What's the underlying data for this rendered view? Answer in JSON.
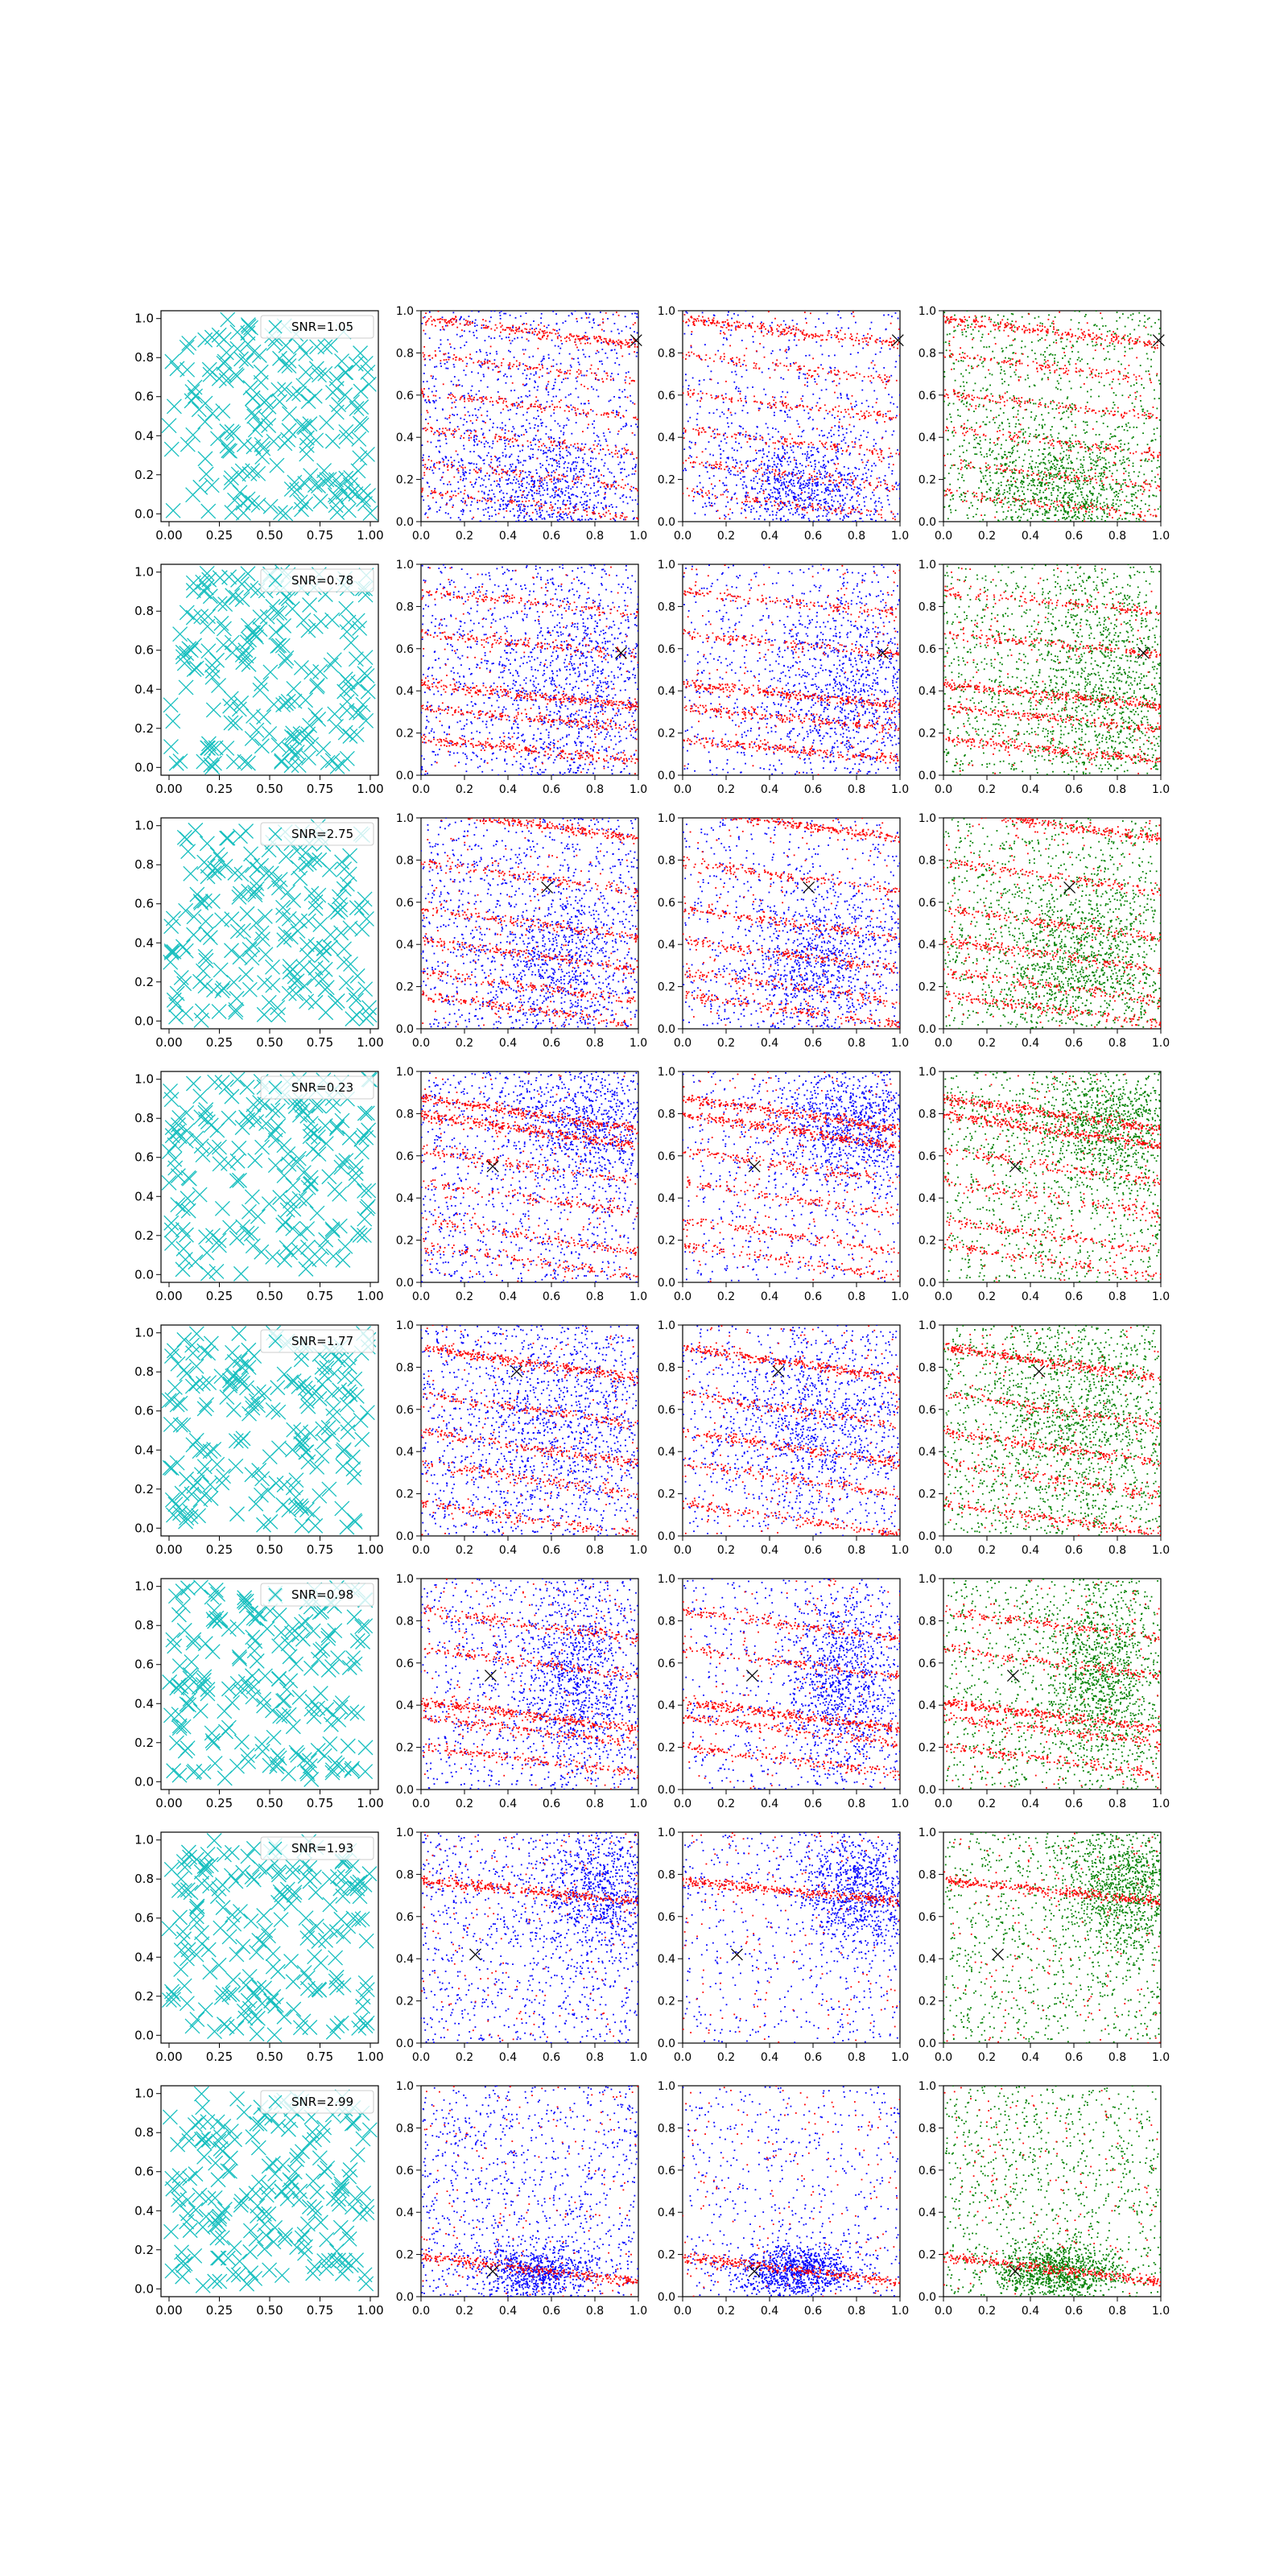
{
  "figure": {
    "rows": 8,
    "cols": 4,
    "column_kinds": [
      "scatter-x-markers",
      "scatter-red-blue",
      "scatter-red-blue",
      "scatter-red-green"
    ]
  },
  "colors": {
    "cyan": "#17bfbf",
    "red": "#ff0000",
    "blue": "#0000ff",
    "green": "#008000",
    "marker": "#000000",
    "axis": "#000000"
  },
  "chart_data": [
    {
      "row": 1,
      "type": "scatter",
      "legend": "SNR=1.05",
      "legend_placement": "upper-right",
      "xlim": [
        -0.04,
        1.04
      ],
      "ylim": [
        -0.04,
        1.04
      ],
      "xticks": [
        "0.00",
        "0.25",
        "0.50",
        "0.75",
        "1.00"
      ],
      "yticks": [
        "0.0",
        "0.2",
        "0.4",
        "0.6",
        "0.8",
        "1.0"
      ],
      "point_count": 200,
      "density_xticks": [
        "0.0",
        "0.2",
        "0.4",
        "0.6",
        "0.8",
        "1.0"
      ],
      "density_yticks": [
        "0.0",
        "0.2",
        "0.4",
        "0.6",
        "0.8",
        "1.0"
      ],
      "marker": [
        0.99,
        0.86
      ],
      "band_slope": -0.12,
      "bands": [
        [
          0.9,
          0.9
        ],
        [
          0.73,
          0.45
        ],
        [
          0.55,
          0.5
        ],
        [
          0.38,
          0.45
        ],
        [
          0.22,
          0.4
        ],
        [
          0.08,
          0.4
        ]
      ],
      "blob": {
        "cx": 0.55,
        "cy": 0.15,
        "sx": 0.22,
        "sy": 0.15,
        "rot": -20
      }
    },
    {
      "row": 2,
      "type": "scatter",
      "legend": "SNR=0.78",
      "legend_placement": "upper-right",
      "xlim": [
        -0.04,
        1.04
      ],
      "ylim": [
        -0.04,
        1.04
      ],
      "xticks": [
        "0.00",
        "0.25",
        "0.50",
        "0.75",
        "1.00"
      ],
      "yticks": [
        "0.0",
        "0.2",
        "0.4",
        "0.6",
        "0.8",
        "1.0"
      ],
      "point_count": 200,
      "density_xticks": [
        "0.0",
        "0.2",
        "0.4",
        "0.6",
        "0.8",
        "1.0"
      ],
      "density_yticks": [
        "0.0",
        "0.2",
        "0.4",
        "0.6",
        "0.8",
        "1.0"
      ],
      "marker": [
        0.92,
        0.58
      ],
      "band_slope": -0.1,
      "bands": [
        [
          0.82,
          0.5
        ],
        [
          0.62,
          0.55
        ],
        [
          0.38,
          1.0
        ],
        [
          0.27,
          0.7
        ],
        [
          0.12,
          0.8
        ]
      ],
      "blob": {
        "cx": 0.75,
        "cy": 0.4,
        "sx": 0.22,
        "sy": 0.25,
        "rot": 0
      }
    },
    {
      "row": 3,
      "type": "scatter",
      "legend": "SNR=2.75",
      "legend_placement": "upper-right",
      "xlim": [
        -0.04,
        1.04
      ],
      "ylim": [
        -0.04,
        1.04
      ],
      "xticks": [
        "0.00",
        "0.25",
        "0.50",
        "0.75",
        "1.00"
      ],
      "yticks": [
        "0.0",
        "0.2",
        "0.4",
        "0.6",
        "0.8",
        "1.0"
      ],
      "point_count": 200,
      "density_xticks": [
        "0.0",
        "0.2",
        "0.4",
        "0.6",
        "0.8",
        "1.0"
      ],
      "density_yticks": [
        "0.0",
        "0.2",
        "0.4",
        "0.6",
        "0.8",
        "1.0"
      ],
      "marker": [
        0.58,
        0.67
      ],
      "band_slope": -0.14,
      "bands": [
        [
          0.97,
          1.0
        ],
        [
          0.72,
          0.55
        ],
        [
          0.5,
          0.6
        ],
        [
          0.35,
          0.65
        ],
        [
          0.2,
          0.55
        ],
        [
          0.09,
          0.6
        ]
      ],
      "blob": {
        "cx": 0.62,
        "cy": 0.3,
        "sx": 0.18,
        "sy": 0.22,
        "rot": -30
      }
    },
    {
      "row": 4,
      "type": "scatter",
      "legend": "SNR=0.23",
      "legend_placement": "upper-right",
      "xlim": [
        -0.04,
        1.04
      ],
      "ylim": [
        -0.04,
        1.04
      ],
      "xticks": [
        "0.00",
        "0.25",
        "0.50",
        "0.75",
        "1.00"
      ],
      "yticks": [
        "0.0",
        "0.2",
        "0.4",
        "0.6",
        "0.8",
        "1.0"
      ],
      "point_count": 200,
      "density_xticks": [
        "0.0",
        "0.2",
        "0.4",
        "0.6",
        "0.8",
        "1.0"
      ],
      "density_yticks": [
        "0.0",
        "0.2",
        "0.4",
        "0.6",
        "0.8",
        "1.0"
      ],
      "marker": [
        0.33,
        0.55
      ],
      "band_slope": -0.15,
      "bands": [
        [
          0.8,
          1.1
        ],
        [
          0.72,
          1.1
        ],
        [
          0.55,
          0.5
        ],
        [
          0.4,
          0.45
        ],
        [
          0.22,
          0.5
        ],
        [
          0.1,
          0.45
        ]
      ],
      "blob": {
        "cx": 0.78,
        "cy": 0.75,
        "sx": 0.2,
        "sy": 0.15,
        "rot": 0
      }
    },
    {
      "row": 5,
      "type": "scatter",
      "legend": "SNR=1.77",
      "legend_placement": "upper-right",
      "xlim": [
        -0.04,
        1.04
      ],
      "ylim": [
        -0.04,
        1.04
      ],
      "xticks": [
        "0.00",
        "0.25",
        "0.50",
        "0.75",
        "1.00"
      ],
      "yticks": [
        "0.0",
        "0.2",
        "0.4",
        "0.6",
        "0.8",
        "1.0"
      ],
      "point_count": 200,
      "density_xticks": [
        "0.0",
        "0.2",
        "0.4",
        "0.6",
        "0.8",
        "1.0"
      ],
      "density_yticks": [
        "0.0",
        "0.2",
        "0.4",
        "0.6",
        "0.8",
        "1.0"
      ],
      "marker": [
        0.44,
        0.78
      ],
      "band_slope": -0.15,
      "bands": [
        [
          0.82,
          1.1
        ],
        [
          0.6,
          0.55
        ],
        [
          0.42,
          0.7
        ],
        [
          0.27,
          0.5
        ],
        [
          0.08,
          0.6
        ]
      ],
      "blob": {
        "cx": 0.62,
        "cy": 0.55,
        "sx": 0.25,
        "sy": 0.25,
        "rot": -20
      }
    },
    {
      "row": 6,
      "type": "scatter",
      "legend": "SNR=0.98",
      "legend_placement": "upper-right",
      "xlim": [
        -0.04,
        1.04
      ],
      "ylim": [
        -0.04,
        1.04
      ],
      "xticks": [
        "0.00",
        "0.25",
        "0.50",
        "0.75",
        "1.00"
      ],
      "yticks": [
        "0.0",
        "0.2",
        "0.4",
        "0.6",
        "0.8",
        "1.0"
      ],
      "point_count": 200,
      "density_xticks": [
        "0.0",
        "0.2",
        "0.4",
        "0.6",
        "0.8",
        "1.0"
      ],
      "density_yticks": [
        "0.0",
        "0.2",
        "0.4",
        "0.6",
        "0.8",
        "1.0"
      ],
      "marker": [
        0.32,
        0.54
      ],
      "band_slope": -0.13,
      "bands": [
        [
          0.78,
          0.6
        ],
        [
          0.6,
          0.55
        ],
        [
          0.35,
          1.1
        ],
        [
          0.28,
          0.6
        ],
        [
          0.14,
          0.6
        ]
      ],
      "blob": {
        "cx": 0.72,
        "cy": 0.52,
        "sx": 0.12,
        "sy": 0.22,
        "rot": 0
      }
    },
    {
      "row": 7,
      "type": "scatter",
      "legend": "SNR=1.93",
      "legend_placement": "upper-right",
      "xlim": [
        -0.04,
        1.04
      ],
      "ylim": [
        -0.04,
        1.04
      ],
      "xticks": [
        "0.00",
        "0.25",
        "0.50",
        "0.75",
        "1.00"
      ],
      "yticks": [
        "0.0",
        "0.2",
        "0.4",
        "0.6",
        "0.8",
        "1.0"
      ],
      "point_count": 200,
      "density_xticks": [
        "0.0",
        "0.2",
        "0.4",
        "0.6",
        "0.8",
        "1.0"
      ],
      "density_yticks": [
        "0.0",
        "0.2",
        "0.4",
        "0.6",
        "0.8",
        "1.0"
      ],
      "marker": [
        0.25,
        0.42
      ],
      "band_slope": -0.1,
      "bands": [
        [
          0.72,
          1.2
        ]
      ],
      "blob": {
        "cx": 0.82,
        "cy": 0.72,
        "sx": 0.14,
        "sy": 0.15,
        "rot": 0
      }
    },
    {
      "row": 8,
      "type": "scatter",
      "legend": "SNR=2.99",
      "legend_placement": "upper-right",
      "xlim": [
        -0.04,
        1.04
      ],
      "ylim": [
        -0.04,
        1.04
      ],
      "xticks": [
        "0.00",
        "0.25",
        "0.50",
        "0.75",
        "1.00"
      ],
      "yticks": [
        "0.0",
        "0.2",
        "0.4",
        "0.6",
        "0.8",
        "1.0"
      ],
      "point_count": 200,
      "density_xticks": [
        "0.0",
        "0.2",
        "0.4",
        "0.6",
        "0.8",
        "1.0"
      ],
      "density_yticks": [
        "0.0",
        "0.2",
        "0.4",
        "0.6",
        "0.8",
        "1.0"
      ],
      "marker": [
        0.33,
        0.12
      ],
      "band_slope": -0.12,
      "bands": [
        [
          0.13,
          1.1
        ]
      ],
      "blob": {
        "cx": 0.52,
        "cy": 0.12,
        "sx": 0.14,
        "sy": 0.06,
        "rot": 0
      }
    }
  ]
}
